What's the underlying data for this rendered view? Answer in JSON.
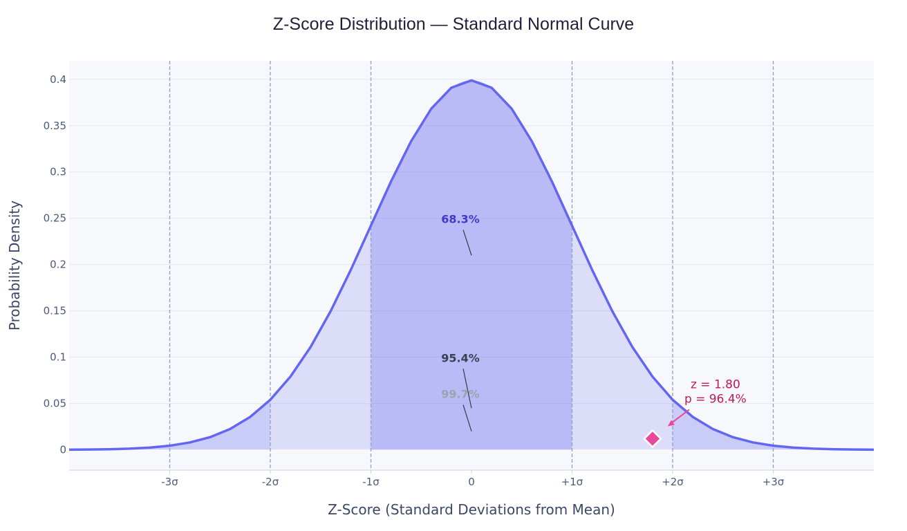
{
  "chart_data": {
    "type": "area",
    "title": "Z-Score Distribution — Standard Normal Curve",
    "xlabel": "Z-Score (Standard Deviations from Mean)",
    "ylabel": "Probability Density",
    "xlim": [
      -4,
      4
    ],
    "ylim": [
      -0.022,
      0.42
    ],
    "grid": true,
    "x_ticks": [
      {
        "value": -3,
        "label": "-3σ"
      },
      {
        "value": -2,
        "label": "-2σ"
      },
      {
        "value": -1,
        "label": "-1σ"
      },
      {
        "value": 0,
        "label": "0"
      },
      {
        "value": 1,
        "label": "+1σ"
      },
      {
        "value": 2,
        "label": "+2σ"
      },
      {
        "value": 3,
        "label": "+3σ"
      }
    ],
    "y_ticks": [
      {
        "value": 0,
        "label": "0"
      },
      {
        "value": 0.05,
        "label": "0.05"
      },
      {
        "value": 0.1,
        "label": "0.1"
      },
      {
        "value": 0.15,
        "label": "0.15"
      },
      {
        "value": 0.2,
        "label": "0.2"
      },
      {
        "value": 0.25,
        "label": "0.25"
      },
      {
        "value": 0.3,
        "label": "0.3"
      },
      {
        "value": 0.35,
        "label": "0.35"
      },
      {
        "value": 0.4,
        "label": "0.4"
      }
    ],
    "sigma_lines": [
      -3,
      -2,
      -1,
      1,
      2,
      3
    ],
    "curve": {
      "x": [
        -4.0,
        -3.8,
        -3.6,
        -3.4,
        -3.2,
        -3.0,
        -2.8,
        -2.6,
        -2.4,
        -2.2,
        -2.0,
        -1.8,
        -1.6,
        -1.4,
        -1.2,
        -1.0,
        -0.8,
        -0.6,
        -0.4,
        -0.2,
        0.0,
        0.2,
        0.4,
        0.6,
        0.8,
        1.0,
        1.2,
        1.4,
        1.6,
        1.8,
        2.0,
        2.2,
        2.4,
        2.6,
        2.8,
        3.0,
        3.2,
        3.4,
        3.6,
        3.8,
        4.0
      ],
      "y": [
        0.0001,
        0.0003,
        0.0006,
        0.0012,
        0.0024,
        0.0044,
        0.0079,
        0.0136,
        0.0224,
        0.0355,
        0.054,
        0.079,
        0.1109,
        0.1497,
        0.1942,
        0.242,
        0.2897,
        0.3332,
        0.3683,
        0.391,
        0.3989,
        0.391,
        0.3683,
        0.3332,
        0.2897,
        0.242,
        0.1942,
        0.1497,
        0.1109,
        0.079,
        0.054,
        0.0355,
        0.0224,
        0.0136,
        0.0079,
        0.0044,
        0.0024,
        0.0012,
        0.0006,
        0.0003,
        0.0001
      ],
      "color": "#6366f1"
    },
    "bands": [
      {
        "from": -2,
        "to": 2,
        "color": "#6366f1",
        "opacity": 0.18
      },
      {
        "from": -1,
        "to": 1,
        "color": "#6366f1",
        "opacity": 0.28
      }
    ],
    "tail_fill": {
      "color": "#6366f1",
      "opacity": 0.3
    },
    "annotations": [
      {
        "text": "68.3%",
        "x": 0,
        "y": 0.21,
        "text_y": 0.245,
        "color": "#4338ca",
        "bold": true
      },
      {
        "text": "95.4%",
        "x": 0,
        "y": 0.045,
        "text_y": 0.095,
        "color": "#374151",
        "bold": true
      },
      {
        "text": "99.7%",
        "x": 0,
        "y": 0.02,
        "text_y": 0.056,
        "color": "#9ca3af",
        "bold": true
      }
    ],
    "marker": {
      "z": 1.8,
      "y": 0.012,
      "color": "#ec4899",
      "label_lines": [
        "z = 1.80",
        "p = 96.4%"
      ],
      "label_color": "#be185d"
    }
  }
}
